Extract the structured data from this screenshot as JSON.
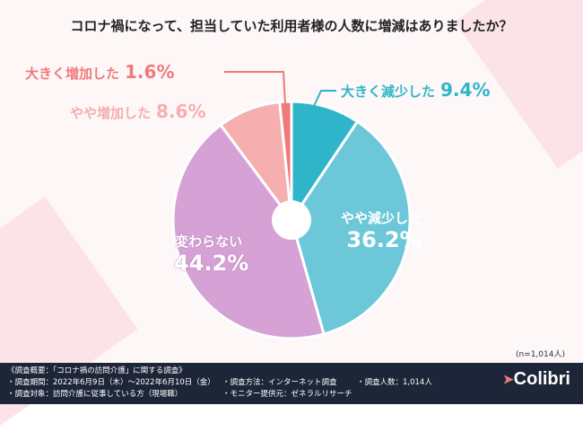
{
  "title": "コロナ禍になって、担当していた利用者様の人数に増減はありましたか？",
  "chart_data": {
    "type": "pie",
    "title": "コロナ禍になって、担当していた利用者様の人数に増減はありましたか？",
    "categories": [
      "大きく減少した",
      "やや減少した",
      "変わらない",
      "やや増加した",
      "大きく増加した"
    ],
    "values": [
      9.4,
      36.2,
      44.2,
      8.6,
      1.6
    ],
    "value_labels": [
      "9.4%",
      "36.2%",
      "44.2%",
      "8.6%",
      "1.6%"
    ],
    "colors": [
      "#2fb5c9",
      "#6cc8d8",
      "#d6a2d6",
      "#f6aeae",
      "#f07a7a"
    ],
    "donut": true
  },
  "sample_note": "(n=1,014人)",
  "footer": {
    "heading": "《調査概要：「コロナ禍の訪問介護」に関する調査》",
    "period": "・調査期間：2022年6月9日（木）～2022年6月10日（金）",
    "method": "・調査方法：インターネット調査",
    "count": "・調査人数：1,014人",
    "target": "・調査対象：訪問介護に従事している方（現場職）",
    "provider": "・モニター提供元：ゼネラルリサーチ",
    "logo": "Colibri"
  }
}
